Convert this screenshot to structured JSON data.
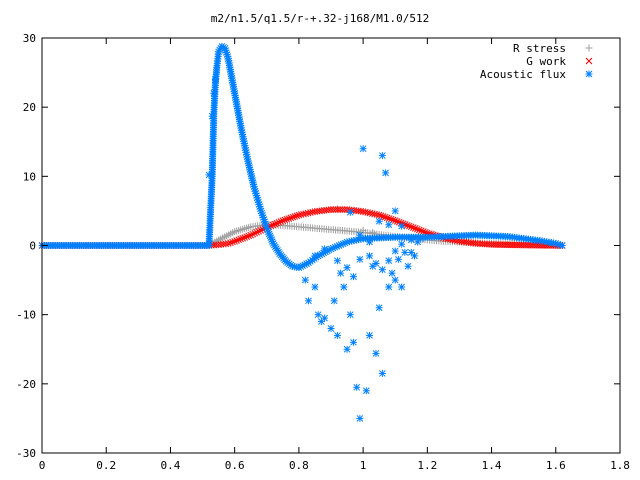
{
  "chart_data": {
    "type": "scatter",
    "title": "m2/n1.5/q1.5/r-+.32-j168/M1.0/512",
    "xlabel": "",
    "ylabel": "",
    "xlim": [
      0,
      1.8
    ],
    "ylim": [
      -30,
      30
    ],
    "xticks": [
      "0",
      "0.2",
      "0.4",
      "0.6",
      "0.8",
      "1",
      "1.2",
      "1.4",
      "1.6",
      "1.8"
    ],
    "yticks": [
      "30",
      "20",
      "10",
      "0",
      "-10",
      "-20",
      "-30"
    ],
    "legend_position": "top-right",
    "grid": false,
    "series": [
      {
        "name": "R stress",
        "marker": "plus",
        "color": "#a0a0a0",
        "curve": [
          [
            0.0,
            0
          ],
          [
            0.52,
            0
          ],
          [
            0.55,
            0.8
          ],
          [
            0.6,
            2.0
          ],
          [
            0.65,
            2.7
          ],
          [
            0.7,
            3.0
          ],
          [
            0.75,
            2.9
          ],
          [
            0.8,
            2.7
          ],
          [
            0.85,
            2.5
          ],
          [
            0.9,
            2.3
          ],
          [
            0.95,
            2.1
          ],
          [
            1.0,
            1.9
          ],
          [
            1.05,
            1.6
          ],
          [
            1.1,
            1.3
          ],
          [
            1.15,
            1.0
          ],
          [
            1.2,
            0.8
          ],
          [
            1.25,
            0.6
          ],
          [
            1.3,
            0.5
          ],
          [
            1.35,
            0.4
          ],
          [
            1.4,
            0.3
          ],
          [
            1.45,
            0.25
          ],
          [
            1.5,
            0.2
          ],
          [
            1.55,
            0.1
          ],
          [
            1.6,
            0.05
          ],
          [
            1.62,
            0
          ]
        ],
        "extra_points": [
          [
            0.92,
            5.3
          ],
          [
            1.0,
            2.2
          ],
          [
            1.03,
            1.9
          ]
        ]
      },
      {
        "name": "G work",
        "marker": "cross",
        "color": "#ff0000",
        "curve": [
          [
            0.0,
            0
          ],
          [
            0.52,
            0
          ],
          [
            0.55,
            0.1
          ],
          [
            0.58,
            0.3
          ],
          [
            0.6,
            0.6
          ],
          [
            0.65,
            1.5
          ],
          [
            0.7,
            2.6
          ],
          [
            0.75,
            3.6
          ],
          [
            0.8,
            4.4
          ],
          [
            0.85,
            4.9
          ],
          [
            0.9,
            5.2
          ],
          [
            0.95,
            5.2
          ],
          [
            1.0,
            4.9
          ],
          [
            1.05,
            4.4
          ],
          [
            1.1,
            3.6
          ],
          [
            1.15,
            2.7
          ],
          [
            1.2,
            1.8
          ],
          [
            1.25,
            1.1
          ],
          [
            1.3,
            0.6
          ],
          [
            1.35,
            0.3
          ],
          [
            1.4,
            0.15
          ],
          [
            1.5,
            0.05
          ],
          [
            1.6,
            0
          ],
          [
            1.62,
            0
          ]
        ]
      },
      {
        "name": "Acoustic flux",
        "marker": "star",
        "color": "#0080ff",
        "curve": [
          [
            0.0,
            0
          ],
          [
            0.52,
            0
          ],
          [
            0.53,
            10
          ],
          [
            0.535,
            19
          ],
          [
            0.54,
            23.5
          ],
          [
            0.545,
            26
          ],
          [
            0.55,
            28
          ],
          [
            0.56,
            28.8
          ],
          [
            0.57,
            28.5
          ],
          [
            0.58,
            27
          ],
          [
            0.6,
            22
          ],
          [
            0.62,
            17
          ],
          [
            0.64,
            12.5
          ],
          [
            0.66,
            8.5
          ],
          [
            0.68,
            5.3
          ],
          [
            0.7,
            2.5
          ],
          [
            0.72,
            0.3
          ],
          [
            0.74,
            -1.2
          ],
          [
            0.76,
            -2.3
          ],
          [
            0.78,
            -3.0
          ],
          [
            0.8,
            -3.2
          ],
          [
            0.83,
            -2.5
          ],
          [
            0.86,
            -1.5
          ],
          [
            0.9,
            -0.5
          ],
          [
            0.95,
            0.5
          ],
          [
            1.0,
            1.0
          ],
          [
            1.05,
            1.1
          ],
          [
            1.1,
            1.2
          ],
          [
            1.15,
            1.2
          ],
          [
            1.2,
            1.2
          ],
          [
            1.25,
            1.3
          ],
          [
            1.3,
            1.4
          ],
          [
            1.35,
            1.5
          ],
          [
            1.4,
            1.4
          ],
          [
            1.45,
            1.3
          ],
          [
            1.5,
            1.0
          ],
          [
            1.55,
            0.7
          ],
          [
            1.6,
            0.3
          ],
          [
            1.62,
            0
          ]
        ],
        "scatter": [
          [
            0.52,
            10.2
          ],
          [
            0.53,
            18.7
          ],
          [
            0.535,
            22
          ],
          [
            0.54,
            24
          ],
          [
            0.82,
            -5
          ],
          [
            0.83,
            -8
          ],
          [
            0.85,
            -6
          ],
          [
            0.86,
            -10
          ],
          [
            0.87,
            -11
          ],
          [
            0.88,
            -10.5
          ],
          [
            0.9,
            -12
          ],
          [
            0.91,
            -8
          ],
          [
            0.92,
            -13
          ],
          [
            0.93,
            -4
          ],
          [
            0.94,
            -6
          ],
          [
            0.95,
            -15
          ],
          [
            0.96,
            -10
          ],
          [
            0.97,
            -14
          ],
          [
            0.98,
            -20.5
          ],
          [
            0.99,
            -25
          ],
          [
            1.0,
            14
          ],
          [
            1.01,
            -21
          ],
          [
            1.02,
            -13
          ],
          [
            1.03,
            -3
          ],
          [
            1.04,
            -15.6
          ],
          [
            1.05,
            -9
          ],
          [
            1.06,
            -18.5
          ],
          [
            1.06,
            13
          ],
          [
            1.07,
            10.5
          ],
          [
            1.08,
            -6
          ],
          [
            1.09,
            -4
          ],
          [
            1.1,
            -5
          ],
          [
            1.1,
            5
          ],
          [
            1.11,
            -2
          ],
          [
            1.12,
            -6
          ],
          [
            1.13,
            -1
          ],
          [
            1.14,
            -3
          ],
          [
            1.15,
            -1
          ],
          [
            1.16,
            -1.5
          ],
          [
            1.17,
            0.5
          ],
          [
            0.85,
            -1.5
          ],
          [
            0.88,
            -0.5
          ],
          [
            0.92,
            -2.2
          ],
          [
            0.95,
            -3.2
          ],
          [
            0.97,
            -4.5
          ],
          [
            0.99,
            -2
          ],
          [
            1.02,
            -1.5
          ],
          [
            1.04,
            -2.6
          ],
          [
            1.06,
            -3.5
          ],
          [
            1.08,
            -2.2
          ],
          [
            1.1,
            -0.8
          ],
          [
            1.12,
            0.2
          ],
          [
            1.15,
            0.8
          ],
          [
            1.18,
            1.0
          ],
          [
            0.96,
            4.8
          ],
          [
            0.99,
            1.5
          ],
          [
            1.02,
            0.5
          ],
          [
            1.05,
            3.5
          ],
          [
            1.08,
            3.0
          ],
          [
            1.12,
            2.8
          ]
        ]
      }
    ]
  }
}
